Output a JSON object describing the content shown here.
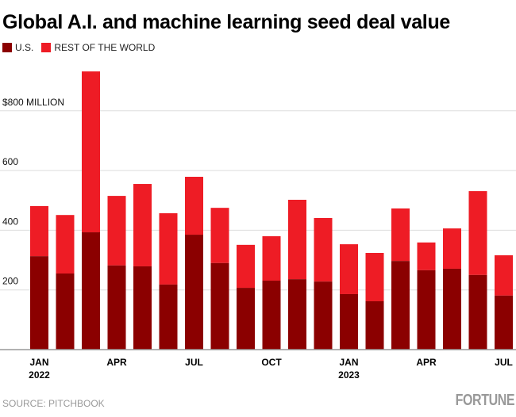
{
  "chart_data": {
    "type": "bar",
    "stacked": true,
    "title": "Global A.I. and machine learning seed deal value",
    "source": "SOURCE: PITCHBOOK",
    "brand": "FORTUNE",
    "colors": {
      "U.S.": "#8b0000",
      "REST OF THE WORLD": "#ee1c25"
    },
    "categories": [
      "Jan 2022",
      "Feb 2022",
      "Mar 2022",
      "Apr 2022",
      "May 2022",
      "Jun 2022",
      "Jul 2022",
      "Aug 2022",
      "Sep 2022",
      "Oct 2022",
      "Nov 2022",
      "Dec 2022",
      "Jan 2023",
      "Feb 2023",
      "Mar 2023",
      "Apr 2023",
      "May 2023",
      "Jun 2023",
      "Jul 2023"
    ],
    "x_tick_labels": [
      {
        "index": 0,
        "line1": "JAN",
        "line2": "2022"
      },
      {
        "index": 3,
        "line1": "APR",
        "line2": ""
      },
      {
        "index": 6,
        "line1": "JUL",
        "line2": ""
      },
      {
        "index": 9,
        "line1": "OCT",
        "line2": ""
      },
      {
        "index": 12,
        "line1": "JAN",
        "line2": "2023"
      },
      {
        "index": 15,
        "line1": "APR",
        "line2": ""
      },
      {
        "index": 18,
        "line1": "JUL",
        "line2": ""
      }
    ],
    "series": [
      {
        "name": "U.S.",
        "values": [
          313,
          255,
          393,
          282,
          279,
          218,
          385,
          290,
          207,
          231,
          236,
          228,
          186,
          162,
          297,
          266,
          271,
          250,
          181
        ]
      },
      {
        "name": "REST OF THE WORLD",
        "values": [
          168,
          196,
          539,
          233,
          276,
          239,
          194,
          185,
          144,
          149,
          266,
          213,
          167,
          162,
          176,
          93,
          135,
          281,
          135
        ]
      }
    ],
    "y_ticks": [
      {
        "value": 200,
        "label": "200"
      },
      {
        "value": 400,
        "label": "400"
      },
      {
        "value": 600,
        "label": "600"
      },
      {
        "value": 800,
        "label": "$800 MILLION"
      }
    ],
    "ylim": [
      0,
      950
    ],
    "grid": true,
    "legend_position": "top-left"
  }
}
